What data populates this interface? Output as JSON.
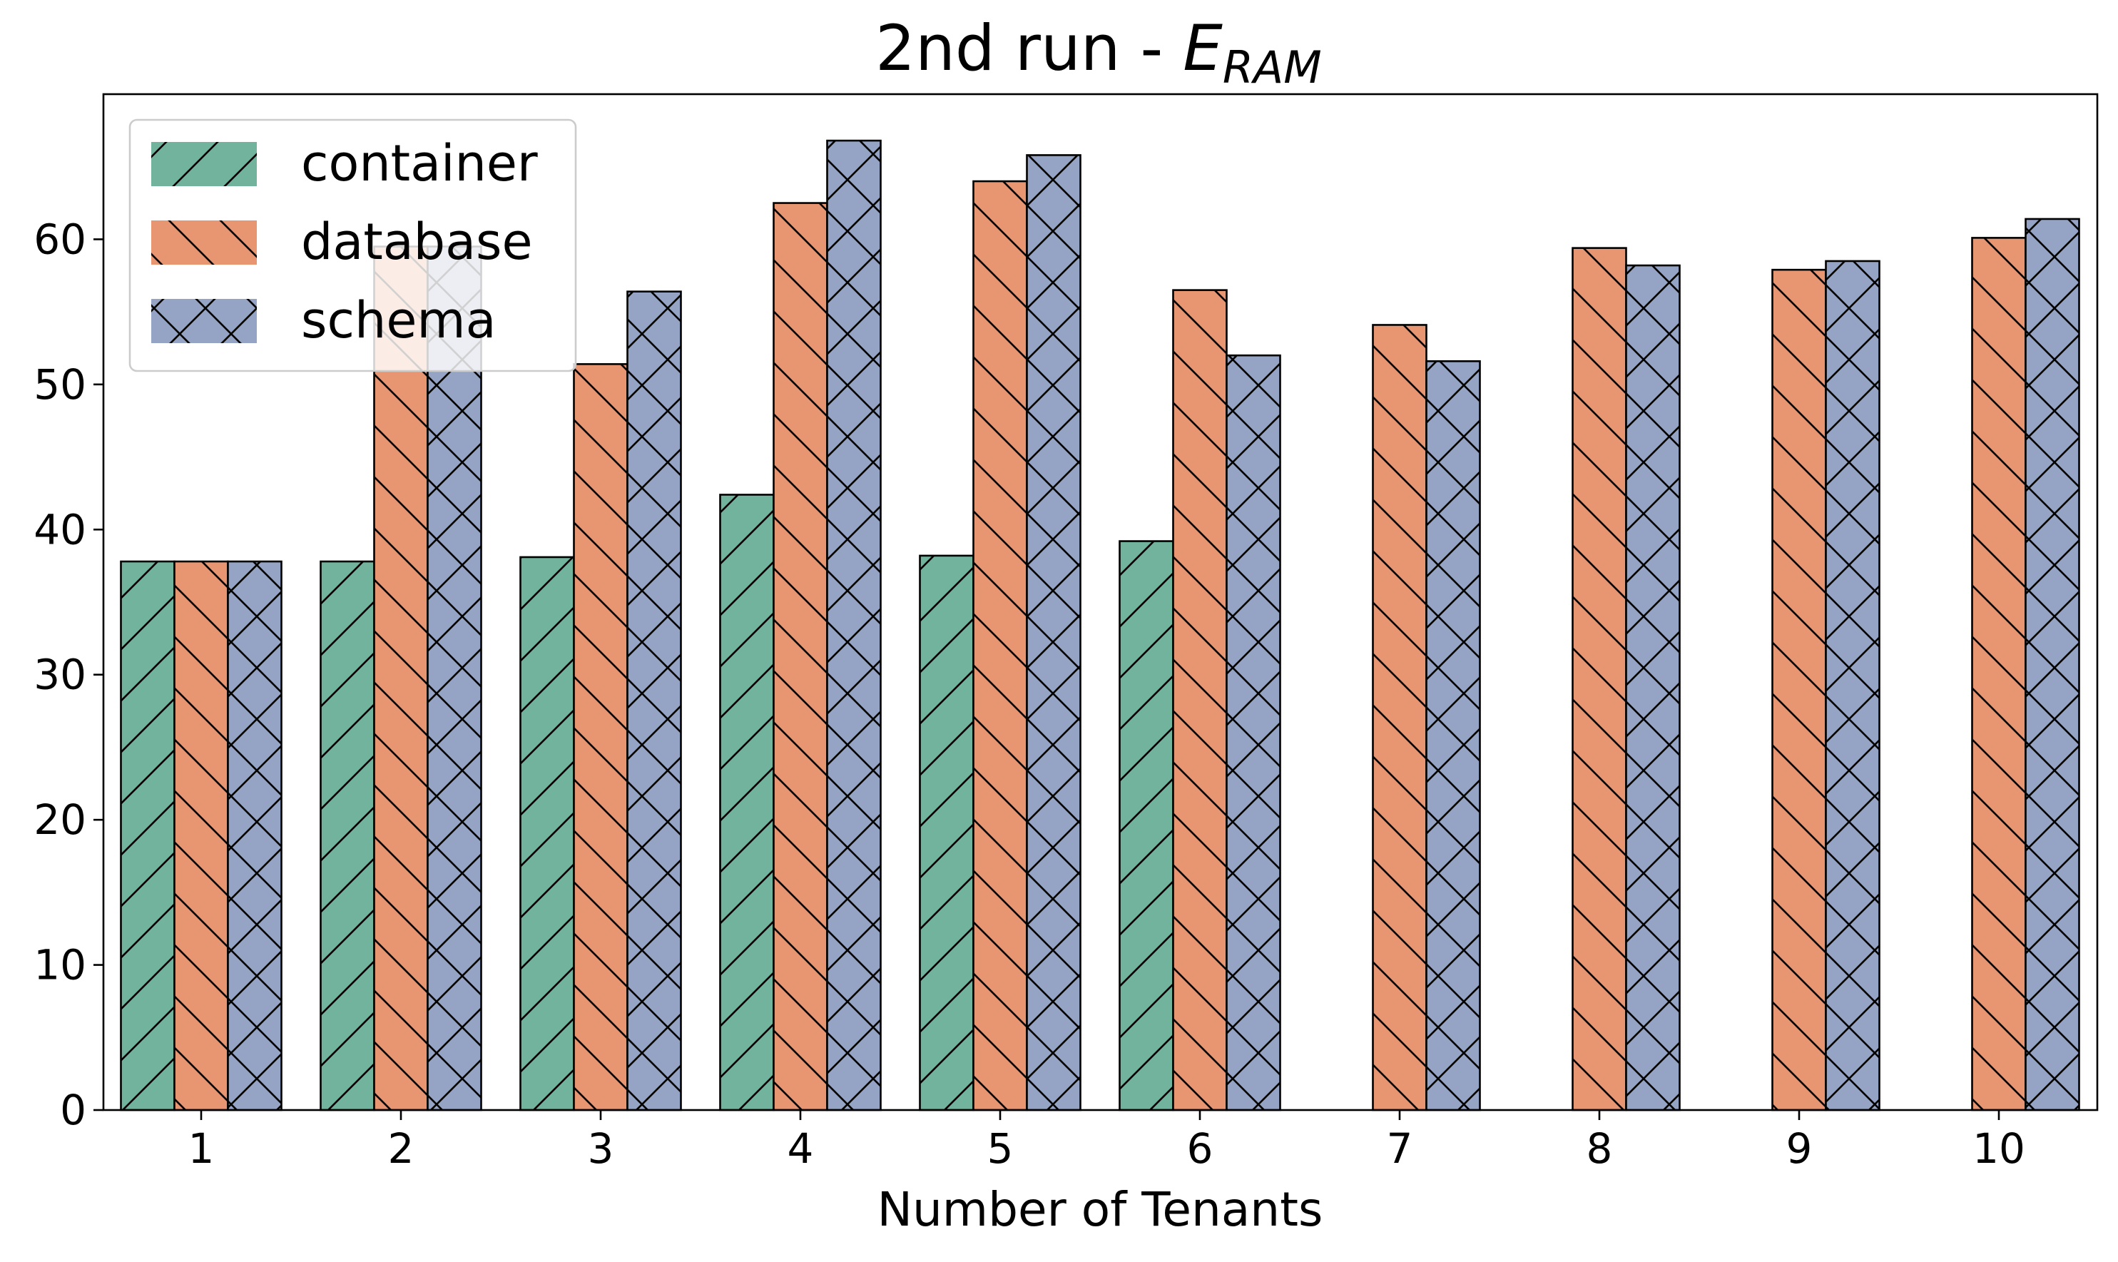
{
  "chart_data": {
    "type": "bar",
    "title": "2nd run - ",
    "title_math": {
      "base": "E",
      "sub": "RAM"
    },
    "xlabel": "Number of Tenants",
    "ylabel": "",
    "categories": [
      "1",
      "2",
      "3",
      "4",
      "5",
      "6",
      "7",
      "8",
      "9",
      "10"
    ],
    "series": [
      {
        "name": "container",
        "color": "#72b39e",
        "hatch": "forward-diagonal",
        "values": [
          37.8,
          37.8,
          38.1,
          42.4,
          38.2,
          39.2,
          null,
          null,
          null,
          null
        ]
      },
      {
        "name": "database",
        "color": "#e89572",
        "hatch": "back-diagonal",
        "values": [
          37.8,
          59.5,
          51.4,
          62.5,
          64.0,
          56.5,
          54.1,
          59.4,
          57.9,
          60.1
        ]
      },
      {
        "name": "schema",
        "color": "#95a3c4",
        "hatch": "cross",
        "values": [
          37.8,
          59.5,
          56.4,
          66.8,
          65.8,
          52.0,
          51.6,
          58.2,
          58.5,
          61.4
        ]
      }
    ],
    "yticks": [
      "0",
      "10",
      "20",
      "30",
      "40",
      "50",
      "60"
    ],
    "ylim": [
      0,
      70
    ],
    "grid": false,
    "legend_position": "top-left"
  }
}
